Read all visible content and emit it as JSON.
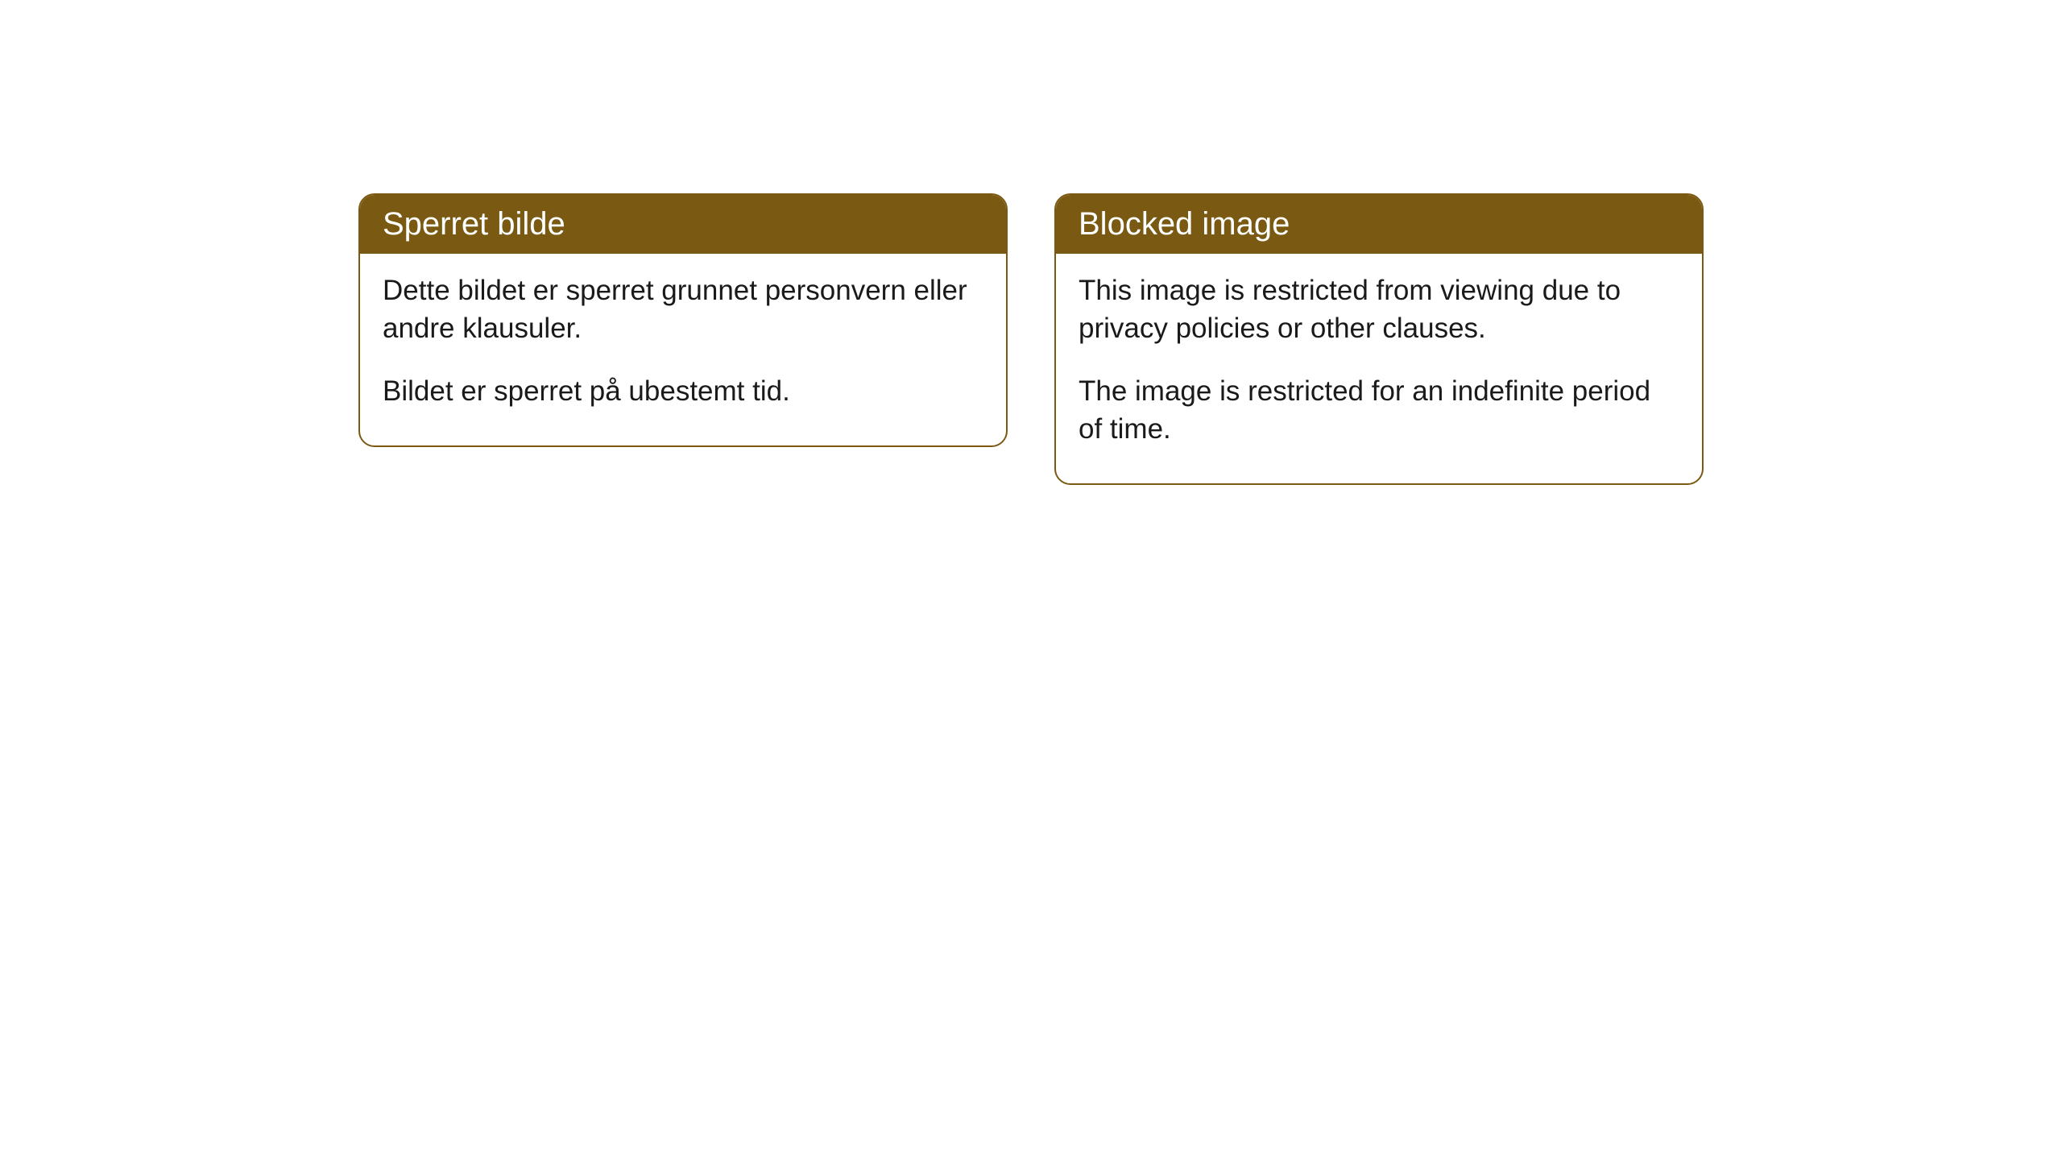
{
  "cards": [
    {
      "title": "Sperret bilde",
      "paragraph1": "Dette bildet er sperret grunnet personvern eller andre klausuler.",
      "paragraph2": "Bildet er sperret på ubestemt tid."
    },
    {
      "title": "Blocked image",
      "paragraph1": "This image is restricted from viewing due to privacy policies or other clauses.",
      "paragraph2": "The image is restricted for an indefinite period of time."
    }
  ],
  "styling": {
    "card_border_color": "#7a5a12",
    "card_header_bg": "#7a5a12",
    "card_header_text_color": "#ffffff",
    "card_body_bg": "#ffffff",
    "card_body_text_color": "#1a1a1a",
    "border_radius": 20,
    "header_fontsize": 40,
    "body_fontsize": 35
  }
}
